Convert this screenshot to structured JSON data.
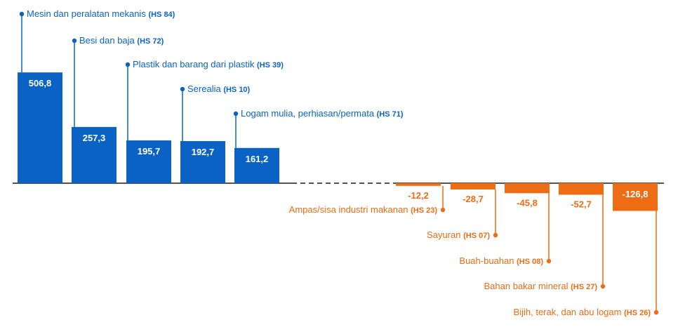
{
  "chart_data": {
    "type": "bar",
    "title": "",
    "xlabel": "",
    "ylabel": "",
    "colors": {
      "positive": "#0a63c4",
      "negative": "#ee6c14",
      "axis": "#1a1a1a",
      "value_text": "#ffffff"
    },
    "ylim": [
      -126.8,
      506.8
    ],
    "bars": [
      {
        "name": "Mesin dan peralatan mekanis",
        "code": "(HS 84)",
        "value": 506.8,
        "value_label": "506,8"
      },
      {
        "name": "Besi dan baja",
        "code": "(HS 72)",
        "value": 257.3,
        "value_label": "257,3"
      },
      {
        "name": "Plastik dan barang dari plastik",
        "code": "(HS 39)",
        "value": 195.7,
        "value_label": "195,7"
      },
      {
        "name": "Serealia",
        "code": "(HS 10)",
        "value": 192.7,
        "value_label": "192,7"
      },
      {
        "name": "Logam mulia, perhiasan/permata",
        "code": "(HS 71)",
        "value": 161.2,
        "value_label": "161,2"
      },
      {
        "name": "Ampas/sisa industri makanan",
        "code": "(HS 23)",
        "value": -12.2,
        "value_label": "-12,2"
      },
      {
        "name": "Sayuran",
        "code": "(HS 07)",
        "value": -28.7,
        "value_label": "-28,7"
      },
      {
        "name": "Buah-buahan",
        "code": "(HS 08)",
        "value": -45.8,
        "value_label": "-45,8"
      },
      {
        "name": "Bahan bakar mineral",
        "code": "(HS 27)",
        "value": -52.7,
        "value_label": "-52,7"
      },
      {
        "name": "Bijih, terak, dan abu logam",
        "code": "(HS 26)",
        "value": -126.8,
        "value_label": "-126,8"
      }
    ]
  }
}
